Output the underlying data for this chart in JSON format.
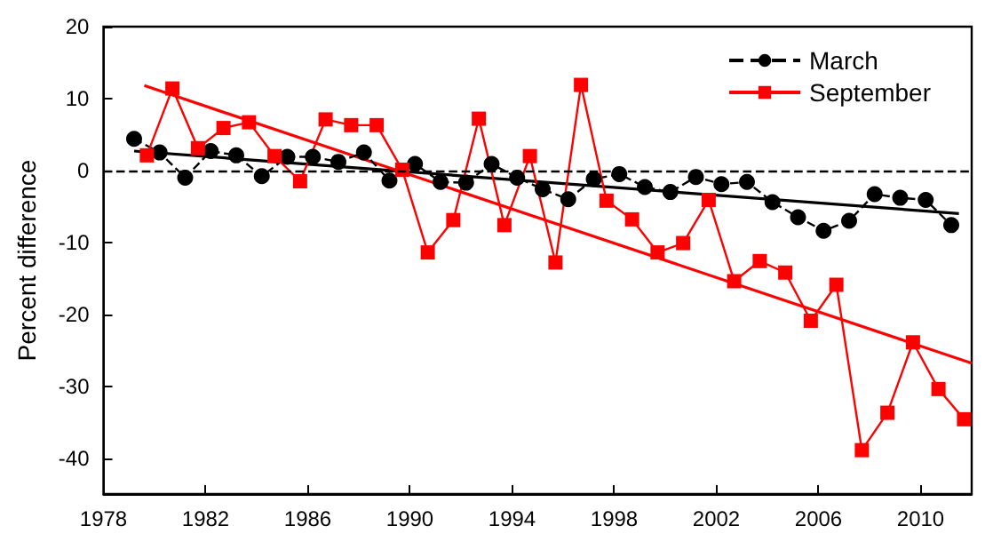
{
  "chart_data": {
    "type": "line",
    "ylabel": "Percent difference",
    "xlim": [
      1978,
      2012
    ],
    "xticks": [
      1978,
      1982,
      1986,
      1990,
      1994,
      1998,
      2002,
      2006,
      2010
    ],
    "ylim": [
      -45,
      20
    ],
    "yticks": [
      -40,
      -30,
      -20,
      -10,
      0,
      10,
      20
    ],
    "grid": false,
    "legend": "top right",
    "ref_lines": [
      {
        "axis": "y",
        "value": 0,
        "color": "#000000",
        "line_style": "dashed"
      }
    ],
    "series": [
      {
        "name": "March",
        "color": "#000000",
        "marker": "circle",
        "line_style": "dashed",
        "x": [
          1979.2,
          1980.2,
          1981.2,
          1982.2,
          1983.2,
          1984.2,
          1985.2,
          1986.2,
          1987.2,
          1988.2,
          1989.2,
          1990.2,
          1991.2,
          1992.2,
          1993.2,
          1994.2,
          1995.2,
          1996.2,
          1997.2,
          1998.2,
          1999.2,
          2000.2,
          2001.2,
          2002.2,
          2003.2,
          2004.2,
          2005.2,
          2006.2,
          2007.2,
          2008.2,
          2009.2,
          2010.2,
          2011.2
        ],
        "values": [
          4.4,
          2.5,
          -1.0,
          2.7,
          2.1,
          -0.8,
          1.9,
          1.9,
          1.2,
          2.5,
          -1.4,
          0.9,
          -1.6,
          -1.7,
          0.9,
          -1.0,
          -2.6,
          -4.0,
          -1.2,
          -0.5,
          -2.3,
          -3.0,
          -0.9,
          -1.9,
          -1.6,
          -4.4,
          -6.5,
          -8.4,
          -7.0,
          -3.3,
          -3.8,
          -4.1,
          -7.6
        ]
      },
      {
        "name": "September",
        "color": "#ff0000",
        "marker": "square",
        "line_style": "solid",
        "x": [
          1979.7,
          1980.7,
          1981.7,
          1982.7,
          1983.7,
          1984.7,
          1985.7,
          1986.7,
          1987.7,
          1988.7,
          1989.7,
          1990.7,
          1991.7,
          1992.7,
          1993.7,
          1994.7,
          1995.7,
          1996.7,
          1997.7,
          1998.7,
          1999.7,
          2000.7,
          2001.7,
          2002.7,
          2003.7,
          2004.7,
          2005.7,
          2006.7,
          2007.7,
          2008.7,
          2009.7,
          2010.7,
          2011.7
        ],
        "values": [
          2.1,
          11.4,
          3.1,
          5.9,
          6.7,
          2.0,
          -1.5,
          7.1,
          6.3,
          6.3,
          0.1,
          -11.4,
          -6.9,
          7.2,
          -7.6,
          2.0,
          -12.8,
          11.9,
          -4.2,
          -6.8,
          -11.4,
          -10.1,
          -4.1,
          -15.4,
          -12.6,
          -14.2,
          -20.9,
          -15.9,
          -38.9,
          -33.7,
          -23.9,
          -30.4,
          -34.6
        ]
      },
      {
        "color": "#000000",
        "marker": "none",
        "line_style": "solid",
        "x": [
          1979.2,
          2011.5
        ],
        "values": [
          2.7,
          -6.0
        ]
      },
      {
        "color": "#ff0000",
        "marker": "none",
        "line_style": "solid",
        "x": [
          1979.6,
          2012
        ],
        "values": [
          11.8,
          -26.8
        ]
      }
    ]
  }
}
